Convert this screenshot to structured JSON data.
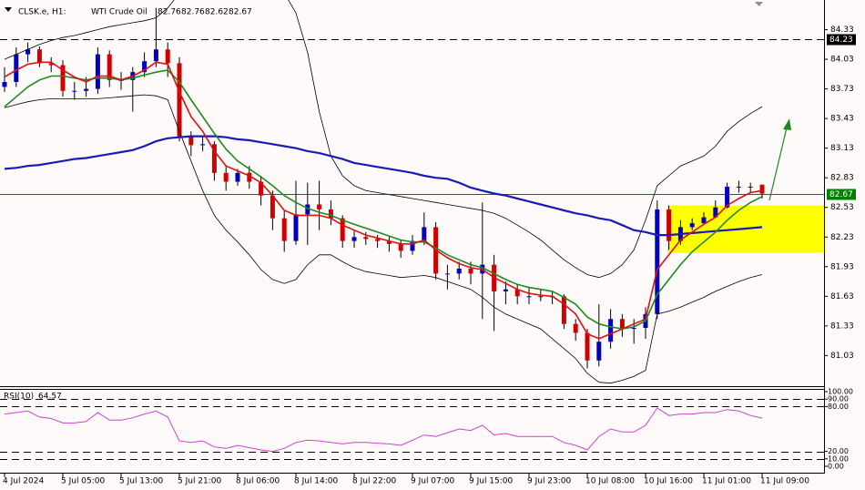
{
  "header": {
    "symbol": "CLSK.e, H1:",
    "name": "WTI Crude Oil",
    "ohlc": [
      82.76,
      82.76,
      82.62,
      82.67
    ]
  },
  "chart_data": [
    {
      "type": "candlestick",
      "categories": [
        "4 Jul 2024",
        null,
        null,
        null,
        null,
        "5 Jul 05:00",
        null,
        null,
        null,
        null,
        "5 Jul 13:00",
        null,
        null,
        null,
        null,
        "5 Jul 21:00",
        null,
        null,
        null,
        null,
        "8 Jul 06:00",
        null,
        null,
        null,
        null,
        "8 Jul 14:00",
        null,
        null,
        null,
        null,
        "8 Jul 22:00",
        null,
        null,
        null,
        null,
        "9 Jul 07:00",
        null,
        null,
        null,
        null,
        "9 Jul 15:00",
        null,
        null,
        null,
        null,
        "9 Jul 23:00",
        null,
        null,
        null,
        null,
        "10 Jul 08:00",
        null,
        null,
        null,
        null,
        "10 Jul 16:00",
        null,
        null,
        null,
        null,
        "11 Jul 01:00",
        null,
        null,
        null,
        null,
        "11 Jul 09:00"
      ],
      "open": [
        83.75,
        83.8,
        84.08,
        84.13,
        83.99,
        83.97,
        83.71,
        83.71,
        83.73,
        84.08,
        83.82,
        83.82,
        83.9,
        84.01,
        84.13,
        83.99,
        83.25,
        83.16,
        83.17,
        82.88,
        82.79,
        82.88,
        82.79,
        82.65,
        82.42,
        82.19,
        82.46,
        82.56,
        82.51,
        82.42,
        82.19,
        82.23,
        82.21,
        82.19,
        82.16,
        82.09,
        82.19,
        82.33,
        81.86,
        81.86,
        81.91,
        81.86,
        81.95,
        81.68,
        81.7,
        81.63,
        81.63,
        81.63,
        81.63,
        81.35,
        81.26,
        80.98,
        81.17,
        81.4,
        81.31,
        81.31,
        81.45,
        82.51,
        82.19,
        82.33,
        82.37,
        82.43,
        82.53,
        82.74,
        82.74,
        82.76
      ],
      "high": [
        83.95,
        84.15,
        84.2,
        84.16,
        84.05,
        84.02,
        83.8,
        83.85,
        84.15,
        84.12,
        83.9,
        83.95,
        84.1,
        84.55,
        84.2,
        84.05,
        83.3,
        83.25,
        83.2,
        82.95,
        82.92,
        82.95,
        82.85,
        82.7,
        82.5,
        82.8,
        82.78,
        82.8,
        82.6,
        82.45,
        82.3,
        82.28,
        82.25,
        82.23,
        82.2,
        82.25,
        82.48,
        82.38,
        81.95,
        81.98,
        81.98,
        82.58,
        82.05,
        81.78,
        81.75,
        81.72,
        81.7,
        81.68,
        81.65,
        81.4,
        81.3,
        81.55,
        81.5,
        81.45,
        81.4,
        81.52,
        82.6,
        82.55,
        82.4,
        82.42,
        82.48,
        82.6,
        82.78,
        82.8,
        82.78,
        82.76
      ],
      "low": [
        83.7,
        83.75,
        84.0,
        83.95,
        83.9,
        83.65,
        83.62,
        83.65,
        83.68,
        83.75,
        83.72,
        83.5,
        83.85,
        83.95,
        83.85,
        83.2,
        83.05,
        83.1,
        82.8,
        82.7,
        82.75,
        82.72,
        82.55,
        82.3,
        82.08,
        82.15,
        82.15,
        82.3,
        82.35,
        82.12,
        82.12,
        82.15,
        82.12,
        82.08,
        82.02,
        82.05,
        82.15,
        81.8,
        81.7,
        81.8,
        81.75,
        81.4,
        81.28,
        81.55,
        81.55,
        81.55,
        81.58,
        81.55,
        81.3,
        81.18,
        80.9,
        80.92,
        81.1,
        81.22,
        81.15,
        81.2,
        81.4,
        82.1,
        82.15,
        82.3,
        82.35,
        82.45,
        82.52,
        82.68,
        82.68,
        82.62
      ],
      "close": [
        83.8,
        84.08,
        84.13,
        83.99,
        83.97,
        83.71,
        83.71,
        83.73,
        84.08,
        83.82,
        83.82,
        83.9,
        84.01,
        84.13,
        83.99,
        83.25,
        83.16,
        83.17,
        82.88,
        82.79,
        82.88,
        82.79,
        82.65,
        82.42,
        82.19,
        82.46,
        82.56,
        82.51,
        82.42,
        82.19,
        82.23,
        82.21,
        82.19,
        82.16,
        82.09,
        82.19,
        82.33,
        81.86,
        81.86,
        81.91,
        81.86,
        81.95,
        81.68,
        81.7,
        81.63,
        81.63,
        81.63,
        81.63,
        81.35,
        81.26,
        80.98,
        81.17,
        81.4,
        81.31,
        81.31,
        81.45,
        82.51,
        82.19,
        82.33,
        82.37,
        82.43,
        82.53,
        82.74,
        82.74,
        82.74,
        82.67
      ],
      "up_color": "#0000c0",
      "down_color": "#d00000",
      "series": [
        {
          "color": "#000000",
          "width": 0.8,
          "values": [
            84.03,
            84.08,
            84.13,
            84.18,
            84.22,
            84.25,
            84.27,
            84.3,
            84.33,
            84.36,
            84.38,
            84.4,
            84.42,
            84.45,
            84.55,
            84.7,
            84.75,
            84.78,
            84.8,
            84.8,
            84.8,
            84.8,
            84.78,
            84.75,
            84.7,
            84.5,
            84.1,
            83.5,
            83.05,
            82.85,
            82.75,
            82.7,
            82.68,
            82.66,
            82.64,
            82.62,
            82.6,
            82.58,
            82.56,
            82.54,
            82.52,
            82.5,
            82.47,
            82.42,
            82.35,
            82.28,
            82.2,
            82.1,
            82.0,
            81.92,
            81.85,
            81.82,
            81.86,
            81.95,
            82.1,
            82.4,
            82.75,
            82.85,
            82.95,
            83.0,
            83.05,
            83.15,
            83.3,
            83.4,
            83.48,
            83.55
          ]
        },
        {
          "color": "#000000",
          "width": 0.8,
          "values": [
            83.54,
            83.57,
            83.6,
            83.62,
            83.63,
            83.63,
            83.63,
            83.63,
            83.63,
            83.64,
            83.65,
            83.66,
            83.67,
            83.66,
            83.62,
            83.3,
            83.0,
            82.7,
            82.45,
            82.3,
            82.18,
            82.05,
            81.9,
            81.8,
            81.76,
            81.8,
            81.95,
            82.05,
            82.05,
            81.98,
            81.92,
            81.88,
            81.86,
            81.84,
            81.82,
            81.83,
            81.84,
            81.82,
            81.78,
            81.74,
            81.7,
            81.62,
            81.52,
            81.45,
            81.4,
            81.35,
            81.3,
            81.2,
            81.1,
            81.0,
            80.85,
            80.76,
            80.75,
            80.78,
            80.82,
            80.88,
            81.45,
            81.48,
            81.52,
            81.57,
            81.62,
            81.68,
            81.73,
            81.78,
            81.82,
            81.85
          ]
        },
        {
          "color": "#1a1ab8",
          "width": 2.2,
          "values": [
            82.92,
            82.93,
            82.95,
            82.96,
            82.98,
            83.0,
            83.02,
            83.03,
            83.05,
            83.07,
            83.09,
            83.11,
            83.15,
            83.2,
            83.23,
            83.24,
            83.25,
            83.25,
            83.25,
            83.24,
            83.22,
            83.21,
            83.19,
            83.17,
            83.15,
            83.13,
            83.1,
            83.08,
            83.05,
            83.02,
            82.98,
            82.96,
            82.94,
            82.92,
            82.9,
            82.88,
            82.85,
            82.83,
            82.82,
            82.78,
            82.73,
            82.7,
            82.67,
            82.65,
            82.62,
            82.59,
            82.56,
            82.53,
            82.5,
            82.47,
            82.45,
            82.42,
            82.4,
            82.35,
            82.3,
            82.28,
            82.25,
            82.25,
            82.26,
            82.27,
            82.28,
            82.29,
            82.3,
            82.31,
            82.32,
            82.33
          ]
        },
        {
          "color": "#1e8a1e",
          "width": 1.6,
          "values": [
            83.55,
            83.65,
            83.75,
            83.82,
            83.86,
            83.86,
            83.84,
            83.82,
            83.84,
            83.84,
            83.82,
            83.84,
            83.87,
            83.9,
            83.92,
            83.8,
            83.62,
            83.45,
            83.28,
            83.12,
            83.0,
            82.92,
            82.84,
            82.75,
            82.65,
            82.58,
            82.52,
            82.48,
            82.45,
            82.4,
            82.36,
            82.32,
            82.28,
            82.24,
            82.2,
            82.18,
            82.18,
            82.12,
            82.05,
            82.0,
            81.95,
            81.92,
            81.86,
            81.8,
            81.75,
            81.72,
            81.7,
            81.68,
            81.62,
            81.55,
            81.42,
            81.35,
            81.32,
            81.3,
            81.32,
            81.38,
            81.65,
            81.8,
            81.95,
            82.08,
            82.18,
            82.28,
            82.4,
            82.5,
            82.58,
            82.64
          ]
        },
        {
          "color": "#e01010",
          "width": 1.6,
          "values": [
            83.85,
            83.92,
            83.98,
            84.0,
            84.0,
            83.92,
            83.85,
            83.8,
            83.86,
            83.86,
            83.82,
            83.86,
            83.92,
            84.0,
            83.98,
            83.7,
            83.45,
            83.3,
            83.1,
            82.95,
            82.9,
            82.85,
            82.78,
            82.65,
            82.5,
            82.45,
            82.45,
            82.45,
            82.42,
            82.35,
            82.3,
            82.25,
            82.22,
            82.19,
            82.16,
            82.16,
            82.2,
            82.1,
            82.02,
            81.96,
            81.92,
            81.9,
            81.82,
            81.76,
            81.7,
            81.66,
            81.64,
            81.63,
            81.55,
            81.45,
            81.25,
            81.2,
            81.25,
            81.3,
            81.35,
            81.4,
            81.9,
            82.05,
            82.2,
            82.28,
            82.36,
            82.43,
            82.55,
            82.62,
            82.68,
            82.7
          ]
        }
      ],
      "ylim": [
        80.72,
        84.63
      ],
      "yticks": [
        84.33,
        84.03,
        83.73,
        83.43,
        83.13,
        82.83,
        82.53,
        82.23,
        81.93,
        81.63,
        81.33,
        81.03
      ],
      "price_lines": [
        {
          "value": 84.23,
          "color": "#000000",
          "style": "dashed"
        },
        {
          "value": 82.67,
          "color": "#008000",
          "style": "solid"
        }
      ],
      "zone": {
        "from": 82.07,
        "to": 82.55,
        "color": "#ffff00"
      }
    },
    {
      "type": "line",
      "title": "RSI(10)",
      "color": "#d040d0",
      "values": [
        70,
        72,
        74,
        66,
        64,
        58,
        58,
        60,
        72,
        62,
        62,
        65,
        70,
        74,
        66,
        34,
        32,
        34,
        26,
        24,
        28,
        25,
        22,
        20,
        24,
        32,
        35,
        34,
        32,
        30,
        32,
        32,
        31,
        30,
        28,
        35,
        42,
        40,
        45,
        50,
        48,
        55,
        42,
        44,
        40,
        40,
        40,
        40,
        32,
        28,
        22,
        40,
        50,
        46,
        46,
        55,
        78,
        68,
        70,
        70,
        72,
        72,
        76,
        74,
        68,
        64.57
      ],
      "ylim": [
        0,
        100
      ],
      "yticks": [
        {
          "value": 100,
          "label": "100.00"
        },
        {
          "value": 90,
          "label": "90.00"
        },
        {
          "value": 80,
          "label": "80.00"
        },
        {
          "value": 20,
          "label": "20.00"
        },
        {
          "value": 10,
          "label": "10.00"
        },
        {
          "value": 0,
          "label": "0.00"
        }
      ],
      "levels": [
        90,
        80,
        20,
        10
      ]
    }
  ]
}
